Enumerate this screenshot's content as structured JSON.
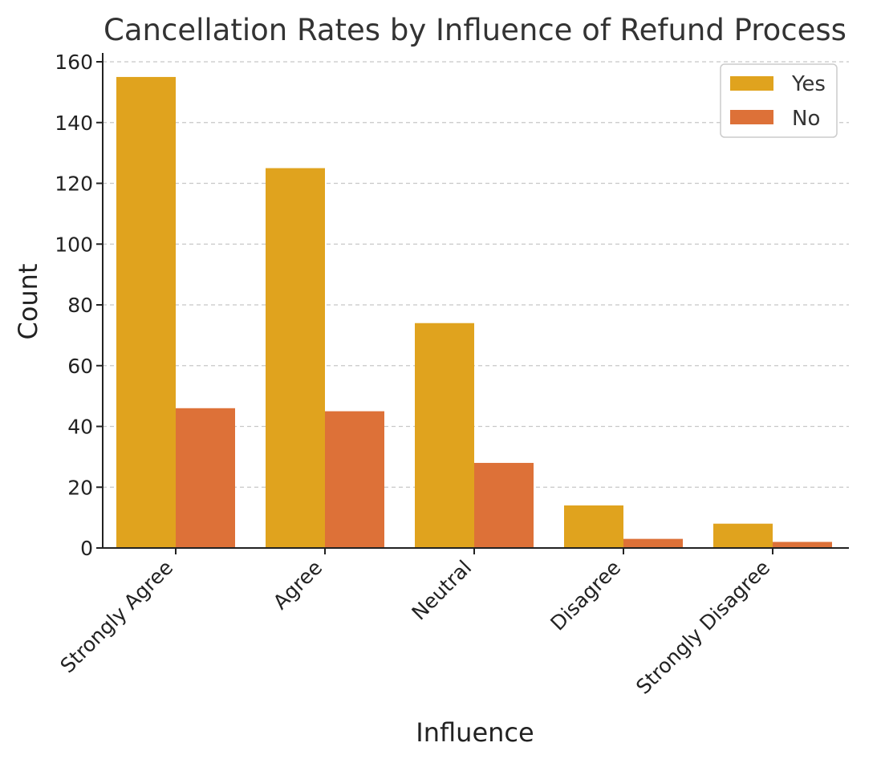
{
  "chart_data": {
    "type": "bar",
    "title": "Cancellation Rates by Influence of Refund Process",
    "xlabel": "Influence",
    "ylabel": "Count",
    "categories": [
      "Strongly Agree",
      "Agree",
      "Neutral",
      "Disagree",
      "Strongly Disagree"
    ],
    "series": [
      {
        "name": "Yes",
        "color": "#e0a31e",
        "values": [
          155,
          125,
          74,
          14,
          8
        ]
      },
      {
        "name": "No",
        "color": "#dd7138",
        "values": [
          46,
          45,
          28,
          3,
          2
        ]
      }
    ],
    "ylim": [
      0,
      160
    ],
    "yticks": [
      0,
      20,
      40,
      60,
      80,
      100,
      120,
      140,
      160
    ],
    "grid": "y-dashed",
    "legend_position": "top-right"
  }
}
